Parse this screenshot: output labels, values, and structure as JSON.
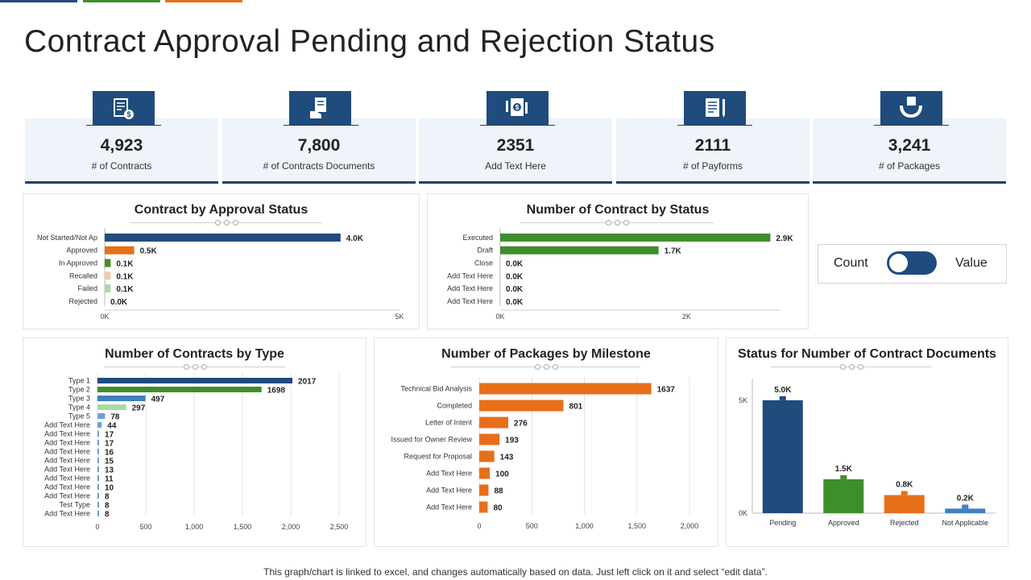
{
  "colors": {
    "navy": "#1f4b7d",
    "green": "#3f8e2c",
    "orange": "#e86f1a",
    "peach": "#f4c8a6",
    "lightgreen": "#a8dba0",
    "lightblue": "#6fa0d6",
    "paleblue": "#9ac0e6"
  },
  "title": "Contract Approval Pending and Rejection Status",
  "kpis": [
    {
      "value": "4,923",
      "label": "# of Contracts",
      "icon": "contract-dollar-icon"
    },
    {
      "value": "7,800",
      "label": "# of Contracts Documents",
      "icon": "document-hand-icon"
    },
    {
      "value": "2351",
      "label": "Add Text Here",
      "icon": "document-money-icon"
    },
    {
      "value": "2111",
      "label": "# of Payforms",
      "icon": "payform-pen-icon"
    },
    {
      "value": "3,241",
      "label": "# of Packages",
      "icon": "hands-package-icon"
    }
  ],
  "toggle": {
    "left_label": "Count",
    "right_label": "Value"
  },
  "footer": "This graph/chart is linked to excel, and changes automatically based on data. Just left click on it and select “edit data”.",
  "chart_data": [
    {
      "type": "bar",
      "orientation": "horizontal",
      "title": "Contract by Approval Status",
      "categories": [
        "Not Started/Not Ap",
        "Approved",
        "In Approved",
        "Recalled",
        "Failed",
        "Rejected"
      ],
      "values": [
        4000,
        500,
        100,
        100,
        100,
        0
      ],
      "labels": [
        "4.0K",
        "0.5K",
        "0.1K",
        "0.1K",
        "0.1K",
        "0.0K"
      ],
      "colors": [
        "#1f4b7d",
        "#e86f1a",
        "#3f8e2c",
        "#f4c8a6",
        "#a8dba0",
        "#1f4b7d"
      ],
      "xlim": [
        0,
        5000
      ],
      "ticks": [
        0,
        5000
      ],
      "tick_labels": [
        "0K",
        "5K"
      ]
    },
    {
      "type": "bar",
      "orientation": "horizontal",
      "title": "Number of Contract by Status",
      "categories": [
        "Executed",
        "Draft",
        "Close",
        "Add Text Here",
        "Add Text Here",
        "Add Text Here"
      ],
      "values": [
        2900,
        1700,
        0,
        0,
        0,
        0
      ],
      "labels": [
        "2.9K",
        "1.7K",
        "0.0K",
        "0.0K",
        "0.0K",
        "0.0K"
      ],
      "colors": [
        "#3f8e2c",
        "#3f8e2c",
        "#3f8e2c",
        "#3f8e2c",
        "#3f8e2c",
        "#3f8e2c"
      ],
      "xlim": [
        0,
        3000
      ],
      "ticks": [
        0,
        2000
      ],
      "tick_labels": [
        "0K",
        "2K"
      ]
    },
    {
      "type": "bar",
      "orientation": "horizontal",
      "title": "Number of Contracts by  Type",
      "categories": [
        "Type 1",
        "Type 2",
        "Type 3",
        "Type 4",
        "Type 5",
        "Add Text Here",
        "Add Text Here",
        "Add Text Here",
        "Add Text Here",
        "Add Text Here",
        "Add Text Here",
        "Add Text Here",
        "Add Text Here",
        "Add Text Here",
        "Test Type",
        "Add Text Here"
      ],
      "values": [
        2017,
        1698,
        497,
        297,
        78,
        44,
        17,
        17,
        16,
        15,
        13,
        11,
        10,
        8,
        8,
        8
      ],
      "colors": [
        "#1f4b7d",
        "#3f8e2c",
        "#3f7fc4",
        "#a8dba0",
        "#6fa0d6",
        "#6fa0d6",
        "#6fa0d6",
        "#6fa0d6",
        "#6fa0d6",
        "#6fa0d6",
        "#6fa0d6",
        "#6fa0d6",
        "#6fa0d6",
        "#6fa0d6",
        "#6fa0d6",
        "#6fa0d6"
      ],
      "xlim": [
        0,
        2500
      ],
      "ticks": [
        0,
        500,
        1000,
        1500,
        2000,
        2500
      ],
      "tick_labels": [
        "0",
        "500",
        "1,000",
        "1,500",
        "2,000",
        "2,500"
      ]
    },
    {
      "type": "bar",
      "orientation": "horizontal",
      "title": "Number of Packages by Milestone",
      "categories": [
        "Technical Bid Analysis",
        "Completed",
        "Letter of Intent",
        "Issued for Owner Review",
        "Request for Proposal",
        "Add Text Here",
        "Add Text Here",
        "Add Text Here"
      ],
      "values": [
        1637,
        801,
        276,
        193,
        143,
        100,
        88,
        80
      ],
      "colors": [
        "#e86f1a",
        "#e86f1a",
        "#e86f1a",
        "#e86f1a",
        "#e86f1a",
        "#e86f1a",
        "#e86f1a",
        "#e86f1a"
      ],
      "xlim": [
        0,
        2000
      ],
      "ticks": [
        0,
        500,
        1000,
        1500,
        2000
      ],
      "tick_labels": [
        "0",
        "500",
        "1,000",
        "1,500",
        "2,000"
      ]
    },
    {
      "type": "bar",
      "orientation": "vertical",
      "title": "Status for Number of Contract Documents",
      "categories": [
        "Pending",
        "Approved",
        "Rejected",
        "Not Applicable"
      ],
      "values": [
        5000,
        1500,
        800,
        200
      ],
      "labels": [
        "5.0K",
        "1.5K",
        "0.8K",
        "0.2K"
      ],
      "colors": [
        "#1f4b7d",
        "#3f8e2c",
        "#e86f1a",
        "#3f7fc4"
      ],
      "ylim": [
        0,
        5600
      ],
      "ticks": [
        0,
        5000
      ],
      "tick_labels": [
        "0K",
        "5K"
      ]
    }
  ]
}
